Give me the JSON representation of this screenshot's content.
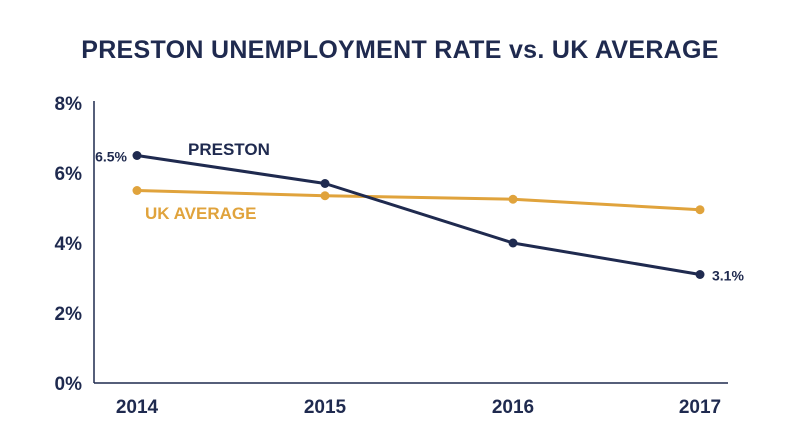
{
  "colors": {
    "preston": "#1f2a4f",
    "uk": "#e0a33c",
    "axis": "#1f2a4f"
  },
  "chart_data": {
    "type": "line",
    "title": "PRESTON UNEMPLOYMENT RATE vs. UK AVERAGE",
    "xlabel": "",
    "ylabel": "",
    "categories": [
      "2014",
      "2015",
      "2016",
      "2017"
    ],
    "ylim": [
      0,
      8
    ],
    "yticks": [
      0,
      2,
      4,
      6,
      8
    ],
    "ytick_labels": [
      "0%",
      "2%",
      "4%",
      "6%",
      "8%"
    ],
    "grid": false,
    "series": [
      {
        "name": "PRESTON",
        "values": [
          6.5,
          5.7,
          4.0,
          3.1
        ]
      },
      {
        "name": "UK AVERAGE",
        "values": [
          5.5,
          5.35,
          5.25,
          4.95
        ]
      }
    ],
    "annotations": [
      "6.5%",
      "3.1%"
    ]
  }
}
